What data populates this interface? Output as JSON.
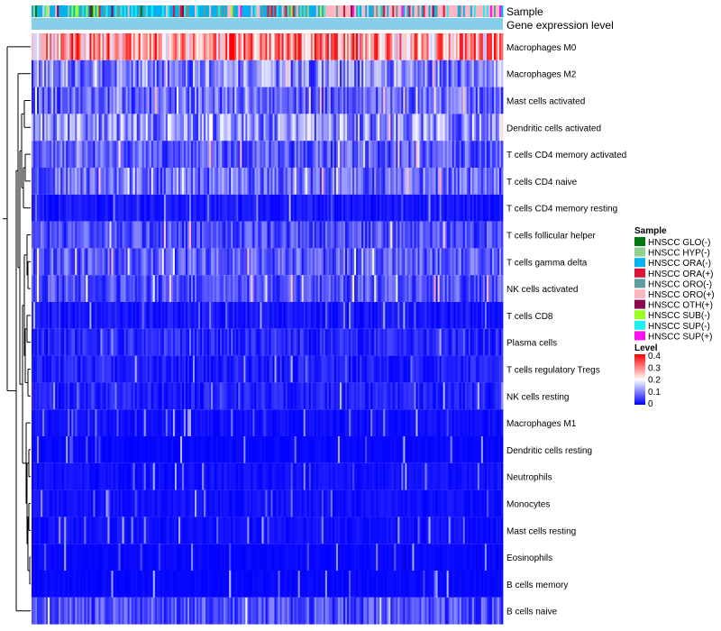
{
  "chart_data": {
    "type": "heatmap",
    "title": "",
    "annotation_tracks": [
      "Sample",
      "Gene expression level"
    ],
    "rows": [
      "Macrophages M0",
      "Macrophages M2",
      "Mast cells activated",
      "Dendritic cells activated",
      "T cells CD4 memory activated",
      "T cells CD4 naive",
      "T cells CD4 memory resting",
      "T cells follicular helper",
      "T cells gamma delta",
      "NK cells activated",
      "T cells CD8",
      "Plasma cells",
      "T cells regulatory  Tregs",
      "NK cells resting",
      "Macrophages M1",
      "Dendritic cells resting",
      "Neutrophils",
      "Monocytes",
      "Mast cells resting",
      "Eosinophils",
      "B cells memory",
      "B cells naive"
    ],
    "row_mean_levels": [
      0.28,
      0.1,
      0.08,
      0.11,
      0.07,
      0.08,
      0.03,
      0.06,
      0.07,
      0.06,
      0.03,
      0.05,
      0.04,
      0.04,
      0.02,
      0.01,
      0.02,
      0.02,
      0.02,
      0.01,
      0.01,
      0.06
    ],
    "n_samples": 260,
    "level_range": [
      0,
      0.4
    ],
    "sample_legend": {
      "title": "Sample",
      "entries": [
        {
          "label": "HNSCC GLO(-)",
          "color": "#007a10"
        },
        {
          "label": "HNSCC HYP(-)",
          "color": "#8fd18f"
        },
        {
          "label": "HNSCC ORA(-)",
          "color": "#00b2ee"
        },
        {
          "label": "HNSCC ORA(+)",
          "color": "#dc143c"
        },
        {
          "label": "HNSCC ORO(-)",
          "color": "#5f9ea0"
        },
        {
          "label": "HNSCC ORO(+)",
          "color": "#ffb6c1"
        },
        {
          "label": "HNSCC OTH(+)",
          "color": "#8b0a50"
        },
        {
          "label": "HNSCC SUB(-)",
          "color": "#9aff22"
        },
        {
          "label": "HNSCC SUP(-)",
          "color": "#1ef0f0"
        },
        {
          "label": "HNSCC SUP(+)",
          "color": "#ff10f0"
        }
      ]
    },
    "level_legend": {
      "title": "Level",
      "ticks": [
        "0.4",
        "0.3",
        "0.2",
        "0.1",
        "0"
      ],
      "colors": [
        "#0000ff",
        "#ffffff",
        "#ff0000"
      ]
    },
    "gene_expression_color": "#87ceeb"
  }
}
